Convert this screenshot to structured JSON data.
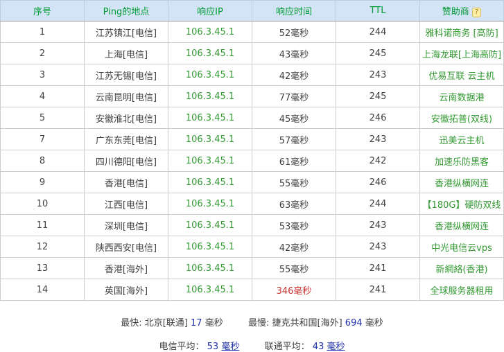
{
  "colors": {
    "header_bg": "#d3e4f6",
    "header_text": "#009933",
    "body_text": "#404040",
    "green_text": "#339933",
    "red_text": "#cc3333",
    "blue_text": "#2233aa",
    "border": "#cccccc"
  },
  "table": {
    "headers": [
      "序号",
      "Ping的地点",
      "响应IP",
      "响应时间",
      "TTL",
      "赞助商"
    ],
    "help_icon": "?",
    "rows": [
      {
        "no": "1",
        "location": "江苏镇江[电信]",
        "ip": "106.3.45.1",
        "time": "52毫秒",
        "ttl": "244",
        "sponsor": "雅科诺商务 [高防]",
        "time_red": false
      },
      {
        "no": "2",
        "location": "上海[电信]",
        "ip": "106.3.45.1",
        "time": "43毫秒",
        "ttl": "245",
        "sponsor": "上海龙联[上海高防]",
        "time_red": false
      },
      {
        "no": "3",
        "location": "江苏无锡[电信]",
        "ip": "106.3.45.1",
        "time": "42毫秒",
        "ttl": "243",
        "sponsor": "优易互联 云主机",
        "time_red": false
      },
      {
        "no": "4",
        "location": "云南昆明[电信]",
        "ip": "106.3.45.1",
        "time": "77毫秒",
        "ttl": "245",
        "sponsor": "云南数据港",
        "time_red": false
      },
      {
        "no": "5",
        "location": "安徽淮北[电信]",
        "ip": "106.3.45.1",
        "time": "45毫秒",
        "ttl": "246",
        "sponsor": "安徽拓普(双线)",
        "time_red": false
      },
      {
        "no": "7",
        "location": "广东东莞[电信]",
        "ip": "106.3.45.1",
        "time": "57毫秒",
        "ttl": "243",
        "sponsor": "迅美云主机",
        "time_red": false
      },
      {
        "no": "8",
        "location": "四川德阳[电信]",
        "ip": "106.3.45.1",
        "time": "61毫秒",
        "ttl": "242",
        "sponsor": "加速乐防黑客",
        "time_red": false
      },
      {
        "no": "9",
        "location": "香港[电信]",
        "ip": "106.3.45.1",
        "time": "55毫秒",
        "ttl": "246",
        "sponsor": "香港纵横网连",
        "time_red": false
      },
      {
        "no": "10",
        "location": "江西[电信]",
        "ip": "106.3.45.1",
        "time": "63毫秒",
        "ttl": "244",
        "sponsor": "【180G】硬防双线",
        "time_red": false
      },
      {
        "no": "11",
        "location": "深圳[电信]",
        "ip": "106.3.45.1",
        "time": "53毫秒",
        "ttl": "243",
        "sponsor": "香港纵横网连",
        "time_red": false
      },
      {
        "no": "12",
        "location": "陕西西安[电信]",
        "ip": "106.3.45.1",
        "time": "42毫秒",
        "ttl": "243",
        "sponsor": "中光电信云vps",
        "time_red": false
      },
      {
        "no": "13",
        "location": "香港[海外]",
        "ip": "106.3.45.1",
        "time": "55毫秒",
        "ttl": "241",
        "sponsor": "新網絡(香港)",
        "time_red": false
      },
      {
        "no": "14",
        "location": "英国[海外]",
        "ip": "106.3.45.1",
        "time": "346毫秒",
        "ttl": "241",
        "sponsor": "全球服务器租用",
        "time_red": true
      }
    ]
  },
  "summary": {
    "fastest_label": "最快: 北京[联通]",
    "fastest_value": "17",
    "fastest_unit": "毫秒",
    "slowest_label": "最慢: 捷克共和国[海外]",
    "slowest_value": "694",
    "slowest_unit": "毫秒",
    "telecom_avg_label": "电信平均：",
    "telecom_avg_value": "53",
    "telecom_avg_unit": "毫秒",
    "unicom_avg_label": "联通平均：",
    "unicom_avg_value": "43",
    "unicom_avg_unit": "毫秒"
  }
}
